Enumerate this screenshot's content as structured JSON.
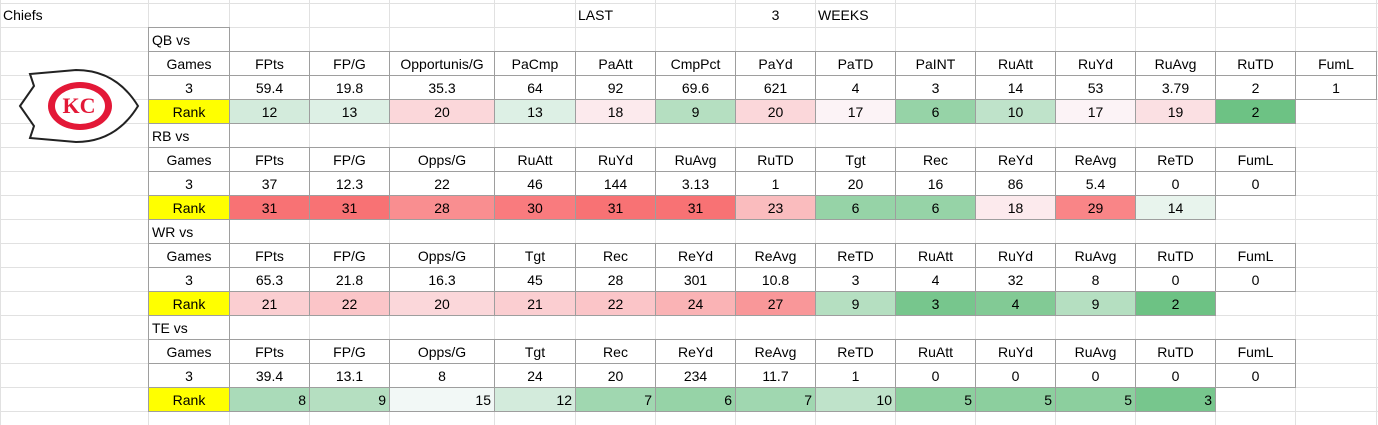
{
  "team": "Chiefs",
  "period": {
    "prefix": "LAST",
    "count": 3,
    "unit": "WEEKS"
  },
  "sections": [
    {
      "label": "QB vs",
      "headers": [
        "Games",
        "FPts",
        "FP/G",
        "Opportunis/G",
        "PaCmp",
        "PaAtt",
        "CmpPct",
        "PaYd",
        "PaTD",
        "PaINT",
        "RuAtt",
        "RuYd",
        "RuAvg",
        "RuTD",
        "FumL"
      ],
      "values": [
        3,
        59.4,
        19.8,
        35.3,
        64,
        92,
        69.6,
        621,
        4,
        3,
        14,
        53,
        3.79,
        2,
        1
      ],
      "rank_label": "Rank",
      "ranks": [
        12,
        13,
        20,
        13,
        18,
        9,
        20,
        17,
        6,
        10,
        17,
        19,
        2
      ]
    },
    {
      "label": "RB vs",
      "headers": [
        "Games",
        "FPts",
        "FP/G",
        "Opps/G",
        "RuAtt",
        "RuYd",
        "RuAvg",
        "RuTD",
        "Tgt",
        "Rec",
        "ReYd",
        "ReAvg",
        "ReTD",
        "FumL"
      ],
      "values": [
        3,
        37,
        12.3,
        22,
        46,
        144,
        3.13,
        1,
        20,
        16,
        86,
        5.4,
        0,
        0
      ],
      "rank_label": "Rank",
      "ranks": [
        31,
        31,
        28,
        30,
        31,
        31,
        23,
        6,
        6,
        18,
        29,
        14
      ]
    },
    {
      "label": "WR vs",
      "headers": [
        "Games",
        "FPts",
        "FP/G",
        "Opps/G",
        "Tgt",
        "Rec",
        "ReYd",
        "ReAvg",
        "ReTD",
        "RuAtt",
        "RuYd",
        "RuAvg",
        "RuTD",
        "FumL"
      ],
      "values": [
        3,
        65.3,
        21.8,
        16.3,
        45,
        28,
        301,
        10.8,
        3,
        4,
        32,
        8,
        0,
        0
      ],
      "rank_label": "Rank",
      "ranks": [
        21,
        22,
        20,
        21,
        22,
        24,
        27,
        9,
        3,
        4,
        9,
        2
      ]
    },
    {
      "label": "TE vs",
      "headers": [
        "Games",
        "FPts",
        "FP/G",
        "Opps/G",
        "Tgt",
        "Rec",
        "ReYd",
        "ReAvg",
        "ReTD",
        "RuAtt",
        "RuYd",
        "RuAvg",
        "RuTD",
        "FumL"
      ],
      "values": [
        3,
        39.4,
        13.1,
        8,
        24,
        20,
        234,
        11.7,
        1,
        0,
        0,
        0,
        0,
        0
      ],
      "rank_label": "Rank",
      "ranks": [
        8,
        9,
        15,
        12,
        7,
        6,
        7,
        10,
        5,
        5,
        5,
        3
      ]
    }
  ]
}
